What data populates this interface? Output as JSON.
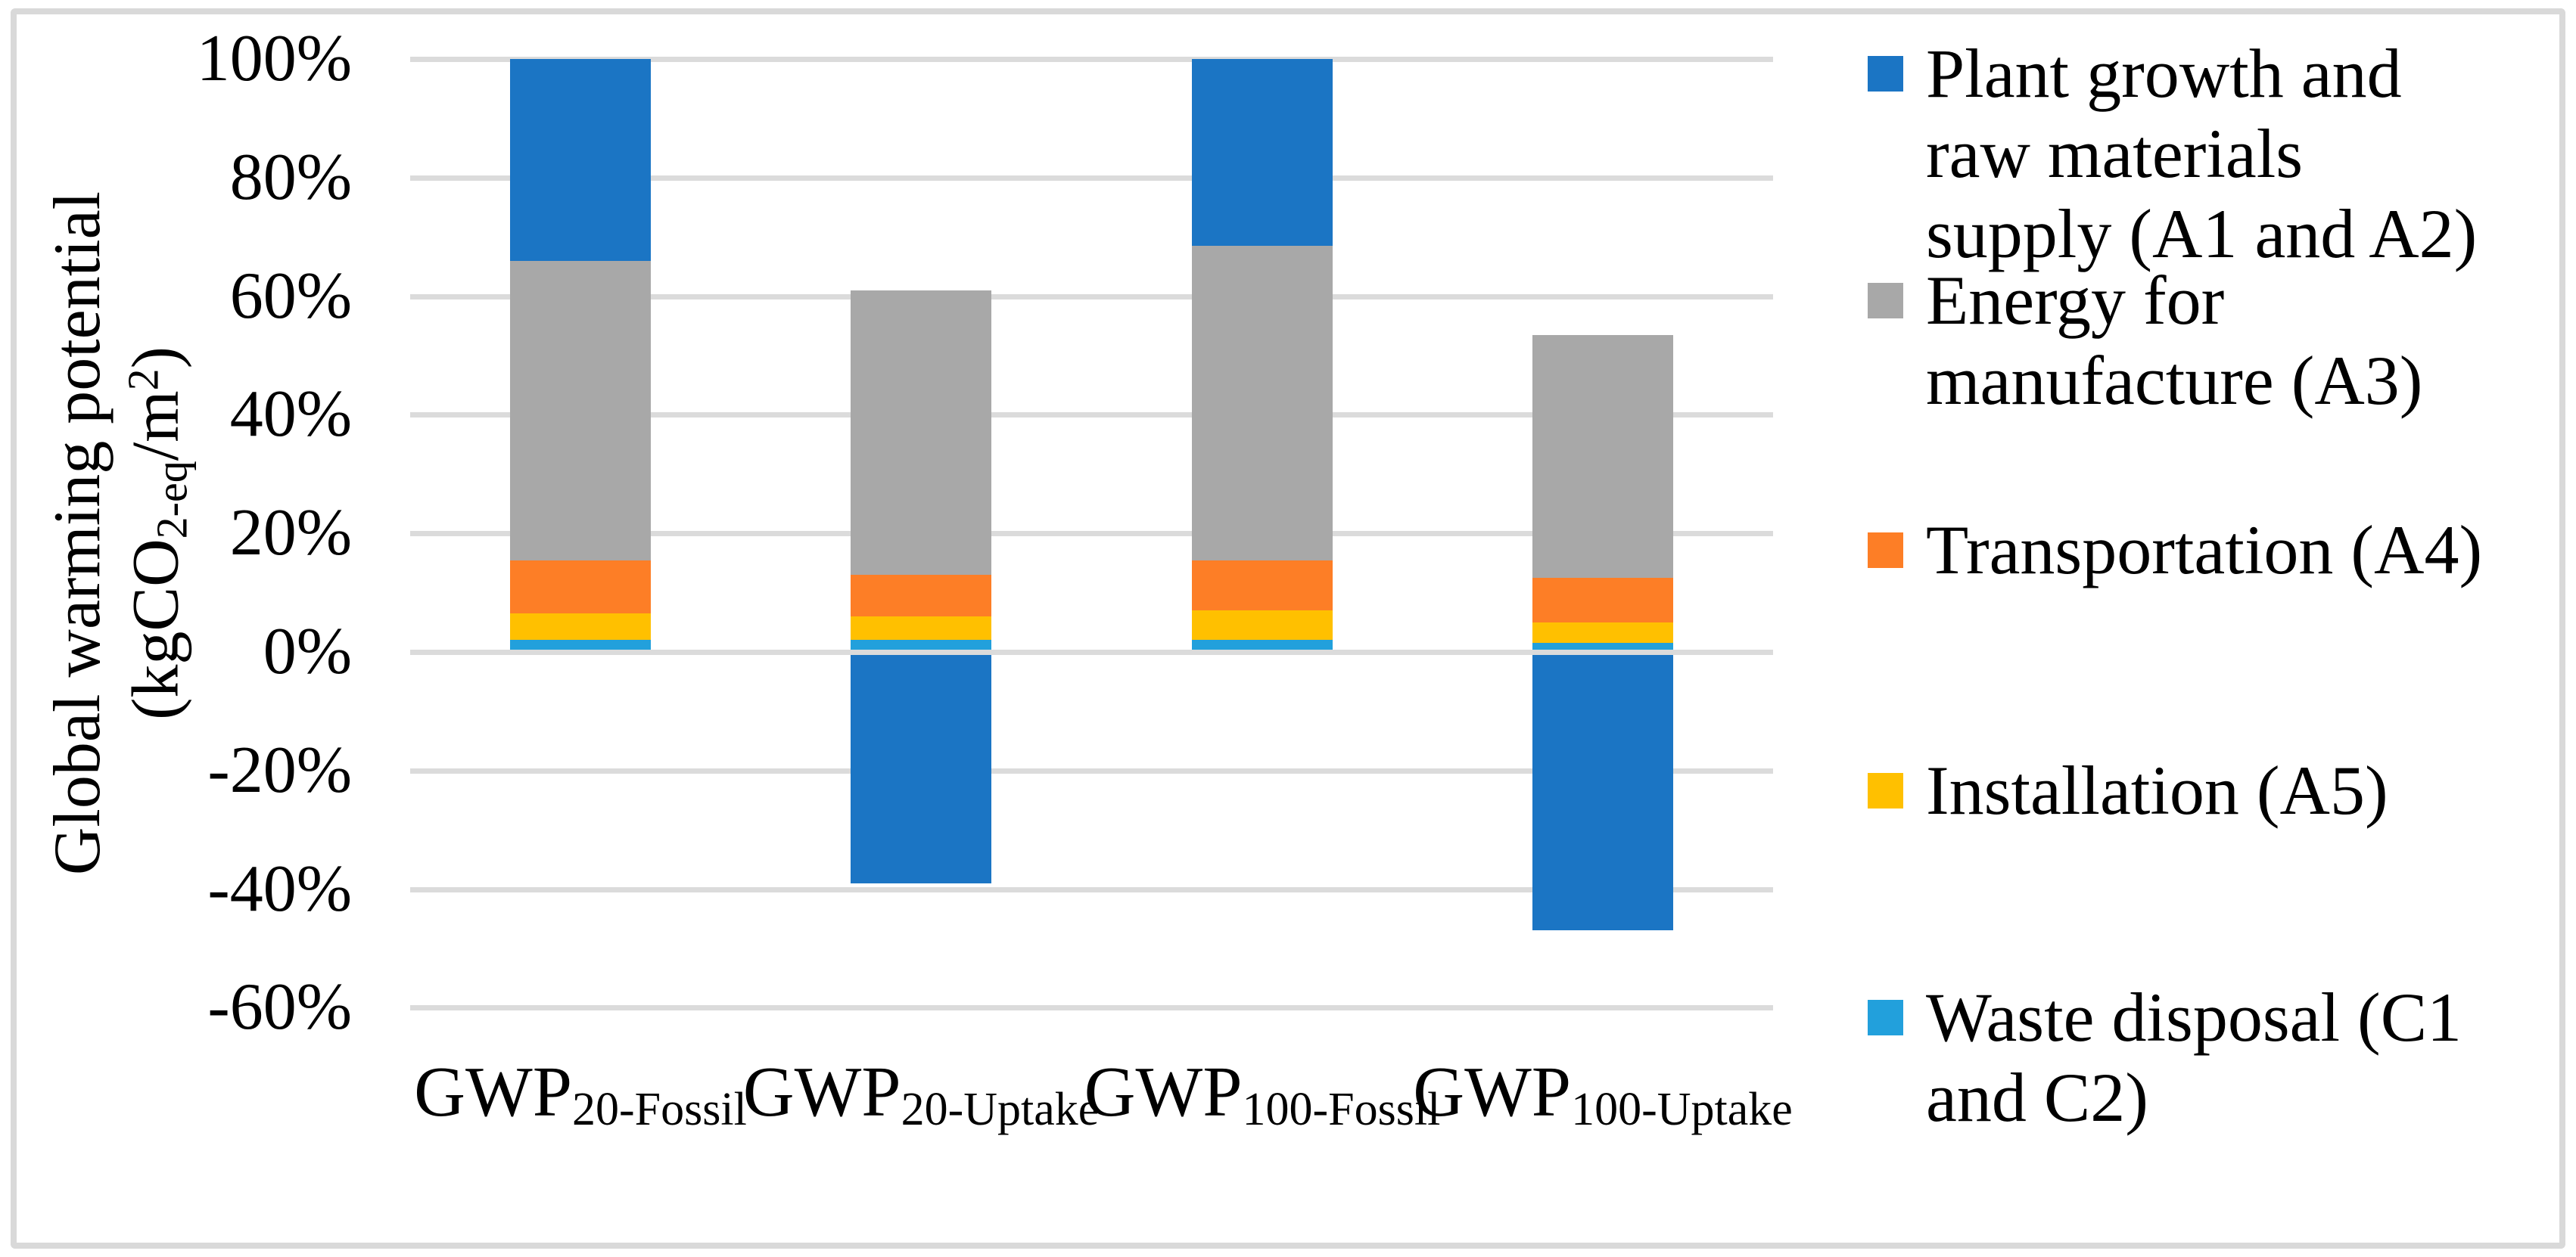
{
  "figure": {
    "background": "#FFFFFF",
    "border_color": "#D9D9D9",
    "gridline_color": "#DBDBDB",
    "text_color": "#000000"
  },
  "y_axis": {
    "title_line1": "Global warming potential",
    "title_line2_tokens": [
      {
        "t": "(kgCO"
      },
      {
        "sub": "2-eq"
      },
      {
        "t": "/m"
      },
      {
        "sup": "2"
      },
      {
        "t": ")"
      }
    ],
    "ticks": [
      {
        "label": "100%",
        "value": 100
      },
      {
        "label": "80%",
        "value": 80
      },
      {
        "label": "60%",
        "value": 60
      },
      {
        "label": "40%",
        "value": 40
      },
      {
        "label": "20%",
        "value": 20
      },
      {
        "label": "0%",
        "value": 0
      },
      {
        "label": "-20%",
        "value": -20
      },
      {
        "label": "-40%",
        "value": -40
      },
      {
        "label": "-60%",
        "value": -60
      }
    ]
  },
  "x_axis": {
    "categories": [
      {
        "main": "GWP",
        "sub": "20-Fossil"
      },
      {
        "main": "GWP",
        "sub": "20-Uptake"
      },
      {
        "main": "GWP",
        "sub": "100-Fossil"
      },
      {
        "main": "GWP",
        "sub": "100-Uptake"
      }
    ]
  },
  "legend": {
    "items": [
      {
        "color": "#1B75C4",
        "lines": [
          "Plant growth and",
          "raw materials",
          "supply (A1 and A2)"
        ]
      },
      {
        "color": "#A8A8A8",
        "lines": [
          "Energy for",
          "manufacture (A3)"
        ]
      },
      {
        "color": "#FD7E26",
        "lines": [
          "Transportation (A4)"
        ]
      },
      {
        "color": "#FFC000",
        "lines": [
          "Installation (A5)"
        ]
      },
      {
        "color": "#22A0DC",
        "lines": [
          "Waste disposal (C1",
          "and C2)"
        ]
      }
    ]
  },
  "chart_data": {
    "type": "bar",
    "stacked": true,
    "title": "",
    "xlabel": "",
    "ylabel": "Global warming potential (kgCO2-eq/m2)",
    "unit": "%",
    "ylim": [
      -60,
      100
    ],
    "ytick_step": 20,
    "grid": true,
    "legend_position": "right",
    "categories": [
      "GWP 20-Fossil",
      "GWP 20-Uptake",
      "GWP 100-Fossil",
      "GWP 100-Uptake"
    ],
    "series": [
      {
        "name": "Plant growth and raw materials supply (A1 and A2)",
        "color": "#1B75C4",
        "values": [
          34,
          -39,
          31.5,
          -47
        ]
      },
      {
        "name": "Energy for manufacture (A3)",
        "color": "#A8A8A8",
        "values": [
          50.5,
          48,
          53,
          41
        ]
      },
      {
        "name": "Transportation (A4)",
        "color": "#FD7E26",
        "values": [
          9,
          7,
          8.5,
          7.5
        ]
      },
      {
        "name": "Installation (A5)",
        "color": "#FFC000",
        "values": [
          4.5,
          4,
          5,
          3.5
        ]
      },
      {
        "name": "Waste disposal (C1 and C2)",
        "color": "#22A0DC",
        "values": [
          2,
          2,
          2,
          1.5
        ]
      }
    ],
    "stack_order_bottom_to_top": [
      4,
      3,
      2,
      1,
      0
    ]
  }
}
